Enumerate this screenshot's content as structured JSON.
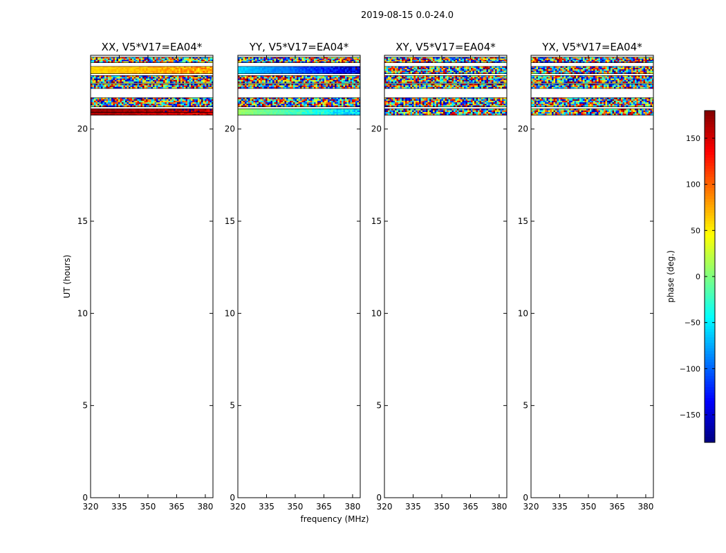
{
  "figure": {
    "title": "2019-08-15 0.0-24.0"
  },
  "chart_data": {
    "type": "heatmap",
    "suptitle": "2019-08-15 0.0-24.0",
    "xlabel": "frequency (MHz)",
    "ylabel": "UT (hours)",
    "xlim": [
      320,
      384
    ],
    "ylim": [
      0,
      24
    ],
    "xticks": [
      320,
      335,
      350,
      365,
      380
    ],
    "yticks": [
      0,
      5,
      10,
      15,
      20
    ],
    "panels": [
      {
        "title": "XX, V5*V17=EA04*",
        "data_rows": [
          {
            "ut": [
              23.6,
              23.9
            ],
            "pattern": "noise"
          },
          {
            "ut": [
              23.0,
              23.4
            ],
            "pattern": "smooth",
            "phase_start": 60,
            "phase_end": 80
          },
          {
            "ut": [
              22.5,
              22.9
            ],
            "pattern": "noise"
          },
          {
            "ut": [
              22.2,
              22.45
            ],
            "pattern": "noise"
          },
          {
            "ut": [
              21.2,
              21.7
            ],
            "pattern": "noise"
          },
          {
            "ut": [
              20.9,
              21.1
            ],
            "pattern": "smooth",
            "phase_start": 170,
            "phase_end": 160
          },
          {
            "ut": [
              20.75,
              20.9
            ],
            "pattern": "smooth",
            "phase_start": 165,
            "phase_end": 140
          }
        ]
      },
      {
        "title": "YY, V5*V17=EA04*",
        "data_rows": [
          {
            "ut": [
              23.6,
              23.9
            ],
            "pattern": "noise"
          },
          {
            "ut": [
              23.0,
              23.4
            ],
            "pattern": "smooth",
            "phase_start": -60,
            "phase_end": -150
          },
          {
            "ut": [
              22.5,
              22.9
            ],
            "pattern": "noise"
          },
          {
            "ut": [
              22.2,
              22.45
            ],
            "pattern": "noise"
          },
          {
            "ut": [
              21.2,
              21.7
            ],
            "pattern": "noise"
          },
          {
            "ut": [
              20.75,
              21.1
            ],
            "pattern": "smooth",
            "phase_start": 10,
            "phase_end": -60
          }
        ]
      },
      {
        "title": "XY, V5*V17=EA04*",
        "data_rows": [
          {
            "ut": [
              23.6,
              23.9
            ],
            "pattern": "noise"
          },
          {
            "ut": [
              23.0,
              23.4
            ],
            "pattern": "noise"
          },
          {
            "ut": [
              22.5,
              22.9
            ],
            "pattern": "noise"
          },
          {
            "ut": [
              22.2,
              22.45
            ],
            "pattern": "noise"
          },
          {
            "ut": [
              21.2,
              21.7
            ],
            "pattern": "noise"
          },
          {
            "ut": [
              20.75,
              21.1
            ],
            "pattern": "noise"
          }
        ]
      },
      {
        "title": "YX, V5*V17=EA04*",
        "data_rows": [
          {
            "ut": [
              23.6,
              23.9
            ],
            "pattern": "noise"
          },
          {
            "ut": [
              23.0,
              23.4
            ],
            "pattern": "noise"
          },
          {
            "ut": [
              22.5,
              22.9
            ],
            "pattern": "noise"
          },
          {
            "ut": [
              22.2,
              22.45
            ],
            "pattern": "noise"
          },
          {
            "ut": [
              21.2,
              21.7
            ],
            "pattern": "noise"
          },
          {
            "ut": [
              20.75,
              21.1
            ],
            "pattern": "noise"
          }
        ]
      }
    ],
    "colorbar": {
      "label": "phase (deg.)",
      "range": [
        -180,
        180
      ],
      "ticks": [
        150,
        100,
        50,
        0,
        -50,
        -100,
        -150
      ],
      "tick_labels": [
        "150",
        "100",
        "50",
        "0",
        "−50",
        "−100",
        "−150"
      ],
      "colormap": "jet"
    }
  }
}
